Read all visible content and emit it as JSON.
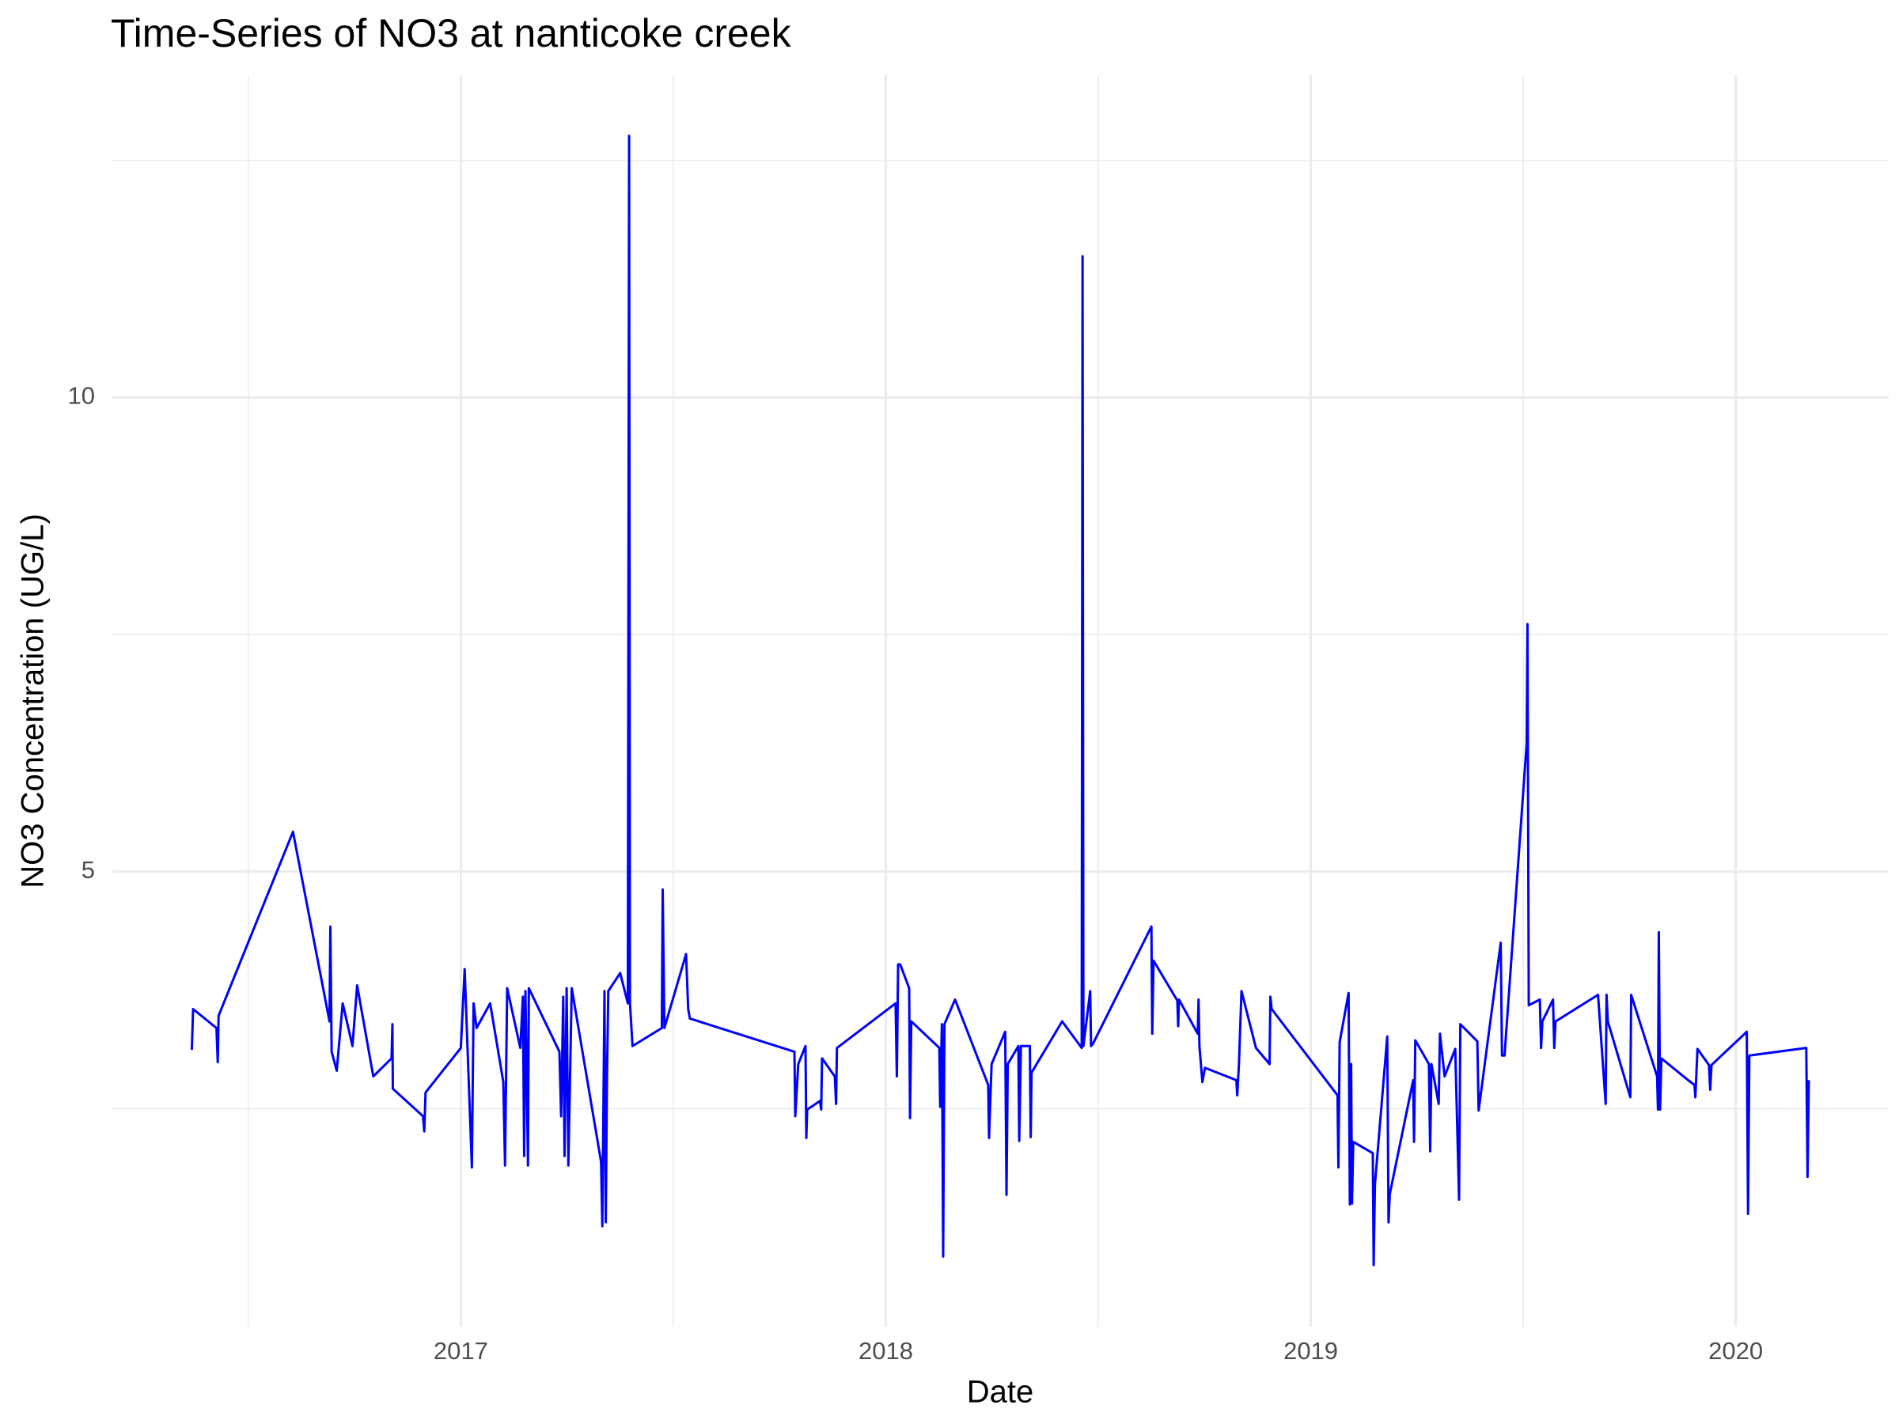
{
  "chart_data": {
    "type": "line",
    "title": "Time-Series of NO3 at nanticoke creek",
    "x_label": "Date",
    "y_label": "NO3 Concentration (UG/L)",
    "color": "#0000ff",
    "grid": true,
    "xlim": [
      2016.18,
      2020.36
    ],
    "ylim": [
      0.2,
      13.4
    ],
    "xticks": [
      2017,
      2018,
      2019,
      2020
    ],
    "yticks": [
      5,
      10
    ],
    "minor_xticks": [
      2016.5,
      2017.5,
      2018.5,
      2019.5
    ],
    "minor_yticks": [
      2.5,
      7.5,
      12.5
    ],
    "x": [
      2016.367,
      2016.37,
      2016.425,
      2016.428,
      2016.43,
      2016.605,
      2016.691,
      2016.693,
      2016.696,
      2016.708,
      2016.722,
      2016.745,
      2016.756,
      2016.794,
      2016.837,
      2016.839,
      2016.84,
      2016.911,
      2016.914,
      2016.917,
      2017.0,
      2017.009,
      2017.026,
      2017.03,
      2017.037,
      2017.069,
      2017.1,
      2017.104,
      2017.109,
      2017.14,
      2017.146,
      2017.149,
      2017.152,
      2017.158,
      2017.16,
      2017.232,
      2017.236,
      2017.241,
      2017.244,
      2017.249,
      2017.253,
      2017.261,
      2017.33,
      2017.333,
      2017.338,
      2017.341,
      2017.344,
      2017.347,
      2017.375,
      2017.393,
      2017.396,
      2017.398,
      2017.404,
      2017.473,
      2017.475,
      2017.479,
      2017.53,
      2017.535,
      2017.539,
      2017.785,
      2017.787,
      2017.794,
      2017.811,
      2017.813,
      2017.815,
      2017.845,
      2017.848,
      2017.85,
      2017.88,
      2017.883,
      2017.885,
      2018.023,
      2018.026,
      2018.029,
      2018.034,
      2018.055,
      2018.057,
      2018.06,
      2018.126,
      2018.128,
      2018.132,
      2018.135,
      2018.138,
      2018.163,
      2018.241,
      2018.243,
      2018.246,
      2018.249,
      2018.281,
      2018.284,
      2018.287,
      2018.312,
      2018.314,
      2018.318,
      2018.339,
      2018.341,
      2018.343,
      2018.415,
      2018.461,
      2018.463,
      2018.465,
      2018.481,
      2018.483,
      2018.487,
      2018.625,
      2018.627,
      2018.63,
      2018.686,
      2018.688,
      2018.69,
      2018.734,
      2018.736,
      2018.738,
      2018.745,
      2018.751,
      2018.825,
      2018.827,
      2018.831,
      2018.837,
      2018.871,
      2018.903,
      2018.905,
      2018.908,
      2019.063,
      2019.065,
      2019.068,
      2019.089,
      2019.092,
      2019.095,
      2019.097,
      2019.1,
      2019.146,
      2019.148,
      2019.151,
      2019.18,
      2019.183,
      2019.186,
      2019.241,
      2019.243,
      2019.246,
      2019.278,
      2019.281,
      2019.284,
      2019.301,
      2019.304,
      2019.315,
      2019.34,
      2019.349,
      2019.352,
      2019.392,
      2019.395,
      2019.447,
      2019.45,
      2019.456,
      2019.508,
      2019.51,
      2019.513,
      2019.539,
      2019.542,
      2019.545,
      2019.57,
      2019.573,
      2019.576,
      2019.676,
      2019.694,
      2019.696,
      2019.699,
      2019.752,
      2019.754,
      2019.815,
      2019.817,
      2019.819,
      2019.822,
      2019.825,
      2019.888,
      2019.903,
      2019.905,
      2019.91,
      2019.937,
      2019.94,
      2019.943,
      2020.026,
      2020.029,
      2020.032,
      2020.166,
      2020.169,
      2020.172
    ],
    "values": [
      3.12,
      3.55,
      3.35,
      2.99,
      3.48,
      5.42,
      3.42,
      4.42,
      3.1,
      2.9,
      3.61,
      3.16,
      3.8,
      2.84,
      3.03,
      3.39,
      2.71,
      2.42,
      2.26,
      2.67,
      3.14,
      3.97,
      1.88,
      3.61,
      3.35,
      3.61,
      2.78,
      1.9,
      3.77,
      3.14,
      3.68,
      2.0,
      3.74,
      1.9,
      3.77,
      3.1,
      2.42,
      3.68,
      2.0,
      3.77,
      1.9,
      3.77,
      1.94,
      1.26,
      3.74,
      1.3,
      2.84,
      3.74,
      3.93,
      3.61,
      12.76,
      3.61,
      3.16,
      3.35,
      4.81,
      3.35,
      4.13,
      3.55,
      3.45,
      3.1,
      2.42,
      2.97,
      3.16,
      2.19,
      2.49,
      2.58,
      2.49,
      3.03,
      2.84,
      2.55,
      3.14,
      3.61,
      2.84,
      4.02,
      4.02,
      3.77,
      2.4,
      3.42,
      3.14,
      2.52,
      3.39,
      0.94,
      3.39,
      3.65,
      2.75,
      2.19,
      2.6,
      2.97,
      3.31,
      1.59,
      2.97,
      3.16,
      2.16,
      3.16,
      3.16,
      2.2,
      2.88,
      3.42,
      3.14,
      11.49,
      3.16,
      3.74,
      3.16,
      3.18,
      4.42,
      3.29,
      4.06,
      3.64,
      3.37,
      3.65,
      3.29,
      3.65,
      3.16,
      2.78,
      2.93,
      2.8,
      2.64,
      2.97,
      3.74,
      3.14,
      2.97,
      3.68,
      3.55,
      2.64,
      1.88,
      3.2,
      3.72,
      1.49,
      2.97,
      1.5,
      2.15,
      2.03,
      0.85,
      1.7,
      3.26,
      1.3,
      1.6,
      2.8,
      2.15,
      3.22,
      2.97,
      2.05,
      2.97,
      2.55,
      3.29,
      2.84,
      3.13,
      1.54,
      3.39,
      3.21,
      2.48,
      4.25,
      3.06,
      3.06,
      6.35,
      7.61,
      3.59,
      3.65,
      3.14,
      3.42,
      3.65,
      3.14,
      3.42,
      3.7,
      2.55,
      3.7,
      3.42,
      2.62,
      3.7,
      2.84,
      2.49,
      4.36,
      2.49,
      3.03,
      2.8,
      2.75,
      2.62,
      3.13,
      2.96,
      2.7,
      2.96,
      3.31,
      1.39,
      3.06,
      3.14,
      1.78,
      2.8
    ]
  }
}
